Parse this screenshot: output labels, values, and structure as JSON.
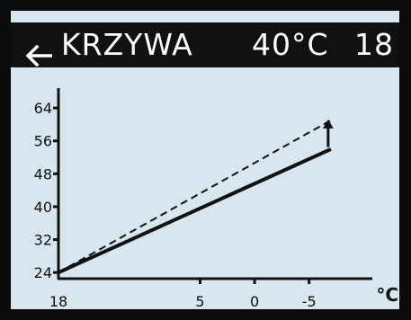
{
  "header": {
    "back_icon": "arrow-left-icon",
    "title": "KRZYWA",
    "temperature": "40°C",
    "value": "18"
  },
  "chart_data": {
    "type": "line",
    "xlabel": "°C",
    "ylabel": "",
    "x_ticks": [
      "18",
      "5",
      "0",
      "-5"
    ],
    "x_tick_values": [
      18,
      5,
      0,
      -5
    ],
    "y_ticks": [
      "64",
      "56",
      "48",
      "40",
      "32",
      "24"
    ],
    "y_tick_values": [
      64,
      56,
      48,
      40,
      32,
      24
    ],
    "xlim": [
      18,
      -8
    ],
    "ylim": [
      22.5,
      66
    ],
    "series": [
      {
        "style": "solid",
        "x": [
          18,
          -7
        ],
        "y": [
          24,
          54
        ]
      },
      {
        "style": "dashed",
        "x": [
          18,
          -7
        ],
        "y": [
          24,
          61
        ]
      }
    ],
    "annotation": {
      "icon": "arrow-up-icon",
      "x": -7,
      "y_from": 54.5,
      "y_to": 61
    }
  }
}
